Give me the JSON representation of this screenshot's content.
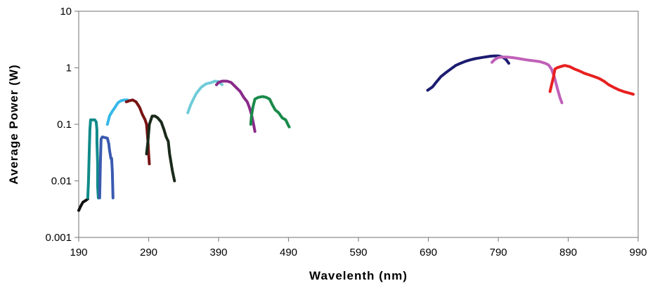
{
  "chart_data": {
    "type": "line",
    "title": "",
    "xlabel": "Wavelenth (nm)",
    "ylabel": "Average Power (W)",
    "xlim": [
      190,
      990
    ],
    "ylim": [
      0.001,
      10
    ],
    "yscale": "log",
    "grid": false,
    "legend": "none",
    "xticks": [
      190,
      290,
      390,
      490,
      590,
      690,
      790,
      890,
      990
    ],
    "xtick_labels": [
      "190",
      "290",
      "390",
      "490",
      "590",
      "690",
      "790",
      "890",
      "990"
    ],
    "yticks": [
      0.001,
      0.01,
      0.1,
      1,
      10
    ],
    "ytick_labels": [
      "0.001",
      "0.01",
      "0.1",
      "1",
      "10"
    ],
    "series": [
      {
        "color": "#111111",
        "points": [
          [
            190,
            0.003
          ],
          [
            193,
            0.0036
          ],
          [
            196,
            0.0042
          ],
          [
            200,
            0.0045
          ],
          [
            203,
            0.0048
          ]
        ]
      },
      {
        "color": "#108a8a",
        "points": [
          [
            203,
            0.005
          ],
          [
            204,
            0.01
          ],
          [
            205,
            0.03
          ],
          [
            206,
            0.08
          ],
          [
            207,
            0.12
          ],
          [
            210,
            0.12
          ],
          [
            213,
            0.12
          ],
          [
            215,
            0.11
          ],
          [
            216,
            0.08
          ],
          [
            216,
            0.05
          ],
          [
            217,
            0.02
          ],
          [
            217,
            0.008
          ],
          [
            218,
            0.005
          ]
        ]
      },
      {
        "color": "#3a5ab0",
        "points": [
          [
            220,
            0.005
          ],
          [
            221,
            0.02
          ],
          [
            222,
            0.055
          ],
          [
            224,
            0.06
          ],
          [
            228,
            0.058
          ],
          [
            231,
            0.057
          ],
          [
            233,
            0.045
          ],
          [
            234,
            0.035
          ],
          [
            236,
            0.025
          ],
          [
            237,
            0.025
          ],
          [
            238,
            0.015
          ],
          [
            239,
            0.005
          ]
        ]
      },
      {
        "color": "#36b8e8",
        "points": [
          [
            231,
            0.1
          ],
          [
            234,
            0.14
          ],
          [
            238,
            0.17
          ],
          [
            242,
            0.2
          ],
          [
            246,
            0.24
          ],
          [
            250,
            0.26
          ],
          [
            255,
            0.27
          ],
          [
            260,
            0.27
          ]
        ]
      },
      {
        "color": "#7a1414",
        "points": [
          [
            258,
            0.25
          ],
          [
            262,
            0.26
          ],
          [
            267,
            0.27
          ],
          [
            272,
            0.25
          ],
          [
            277,
            0.2
          ],
          [
            281,
            0.15
          ],
          [
            285,
            0.12
          ],
          [
            287,
            0.1
          ],
          [
            289,
            0.05
          ],
          [
            290,
            0.03
          ],
          [
            291,
            0.02
          ]
        ]
      },
      {
        "color": "#1a2a1a",
        "points": [
          [
            287,
            0.03
          ],
          [
            289,
            0.05
          ],
          [
            291,
            0.1
          ],
          [
            295,
            0.14
          ],
          [
            299,
            0.14
          ],
          [
            303,
            0.13
          ],
          [
            308,
            0.11
          ],
          [
            312,
            0.08
          ],
          [
            315,
            0.06
          ],
          [
            318,
            0.05
          ],
          [
            320,
            0.03
          ],
          [
            324,
            0.015
          ],
          [
            327,
            0.01
          ]
        ]
      },
      {
        "color": "#70ccd8",
        "points": [
          [
            346,
            0.16
          ],
          [
            350,
            0.22
          ],
          [
            354,
            0.28
          ],
          [
            358,
            0.35
          ],
          [
            365,
            0.45
          ],
          [
            372,
            0.52
          ],
          [
            380,
            0.55
          ],
          [
            385,
            0.58
          ],
          [
            390,
            0.57
          ],
          [
            395,
            0.5
          ]
        ]
      },
      {
        "color": "#8a2a8a",
        "points": [
          [
            387,
            0.5
          ],
          [
            390,
            0.55
          ],
          [
            395,
            0.58
          ],
          [
            402,
            0.58
          ],
          [
            408,
            0.55
          ],
          [
            415,
            0.45
          ],
          [
            421,
            0.38
          ],
          [
            426,
            0.3
          ],
          [
            431,
            0.25
          ],
          [
            434,
            0.2
          ],
          [
            437,
            0.15
          ],
          [
            440,
            0.1
          ],
          [
            442,
            0.075
          ]
        ]
      },
      {
        "color": "#1a8a4a",
        "points": [
          [
            436,
            0.1
          ],
          [
            437,
            0.14
          ],
          [
            439,
            0.2
          ],
          [
            442,
            0.28
          ],
          [
            447,
            0.3
          ],
          [
            453,
            0.31
          ],
          [
            458,
            0.3
          ],
          [
            463,
            0.28
          ],
          [
            467,
            0.22
          ],
          [
            471,
            0.18
          ],
          [
            476,
            0.16
          ],
          [
            481,
            0.13
          ],
          [
            486,
            0.12
          ],
          [
            489,
            0.1
          ],
          [
            491,
            0.09
          ]
        ]
      },
      {
        "color": "#1c1c70",
        "points": [
          [
            689,
            0.4
          ],
          [
            696,
            0.46
          ],
          [
            701,
            0.55
          ],
          [
            708,
            0.7
          ],
          [
            715,
            0.82
          ],
          [
            722,
            0.95
          ],
          [
            729,
            1.1
          ],
          [
            736,
            1.2
          ],
          [
            743,
            1.3
          ],
          [
            750,
            1.38
          ],
          [
            757,
            1.45
          ],
          [
            764,
            1.5
          ],
          [
            771,
            1.55
          ],
          [
            778,
            1.6
          ],
          [
            784,
            1.62
          ],
          [
            790,
            1.62
          ],
          [
            796,
            1.55
          ],
          [
            801,
            1.4
          ],
          [
            805,
            1.2
          ]
        ]
      },
      {
        "color": "#c060b8",
        "points": [
          [
            781,
            1.25
          ],
          [
            785,
            1.4
          ],
          [
            790,
            1.52
          ],
          [
            796,
            1.55
          ],
          [
            802,
            1.55
          ],
          [
            809,
            1.52
          ],
          [
            816,
            1.48
          ],
          [
            823,
            1.43
          ],
          [
            830,
            1.38
          ],
          [
            836,
            1.35
          ],
          [
            843,
            1.32
          ],
          [
            850,
            1.28
          ],
          [
            857,
            1.2
          ],
          [
            862,
            1.12
          ],
          [
            866,
            0.95
          ],
          [
            870,
            0.7
          ],
          [
            874,
            0.45
          ],
          [
            878,
            0.3
          ],
          [
            881,
            0.24
          ]
        ]
      },
      {
        "color": "#e82020",
        "points": [
          [
            864,
            0.38
          ],
          [
            867,
            0.55
          ],
          [
            869,
            0.7
          ],
          [
            871,
            0.95
          ],
          [
            874,
            1.0
          ],
          [
            879,
            1.05
          ],
          [
            885,
            1.1
          ],
          [
            892,
            1.05
          ],
          [
            899,
            0.95
          ],
          [
            906,
            0.88
          ],
          [
            913,
            0.8
          ],
          [
            920,
            0.75
          ],
          [
            927,
            0.7
          ],
          [
            934,
            0.65
          ],
          [
            941,
            0.58
          ],
          [
            948,
            0.5
          ],
          [
            955,
            0.45
          ],
          [
            962,
            0.41
          ],
          [
            969,
            0.38
          ],
          [
            976,
            0.36
          ],
          [
            983,
            0.34
          ]
        ]
      }
    ]
  }
}
